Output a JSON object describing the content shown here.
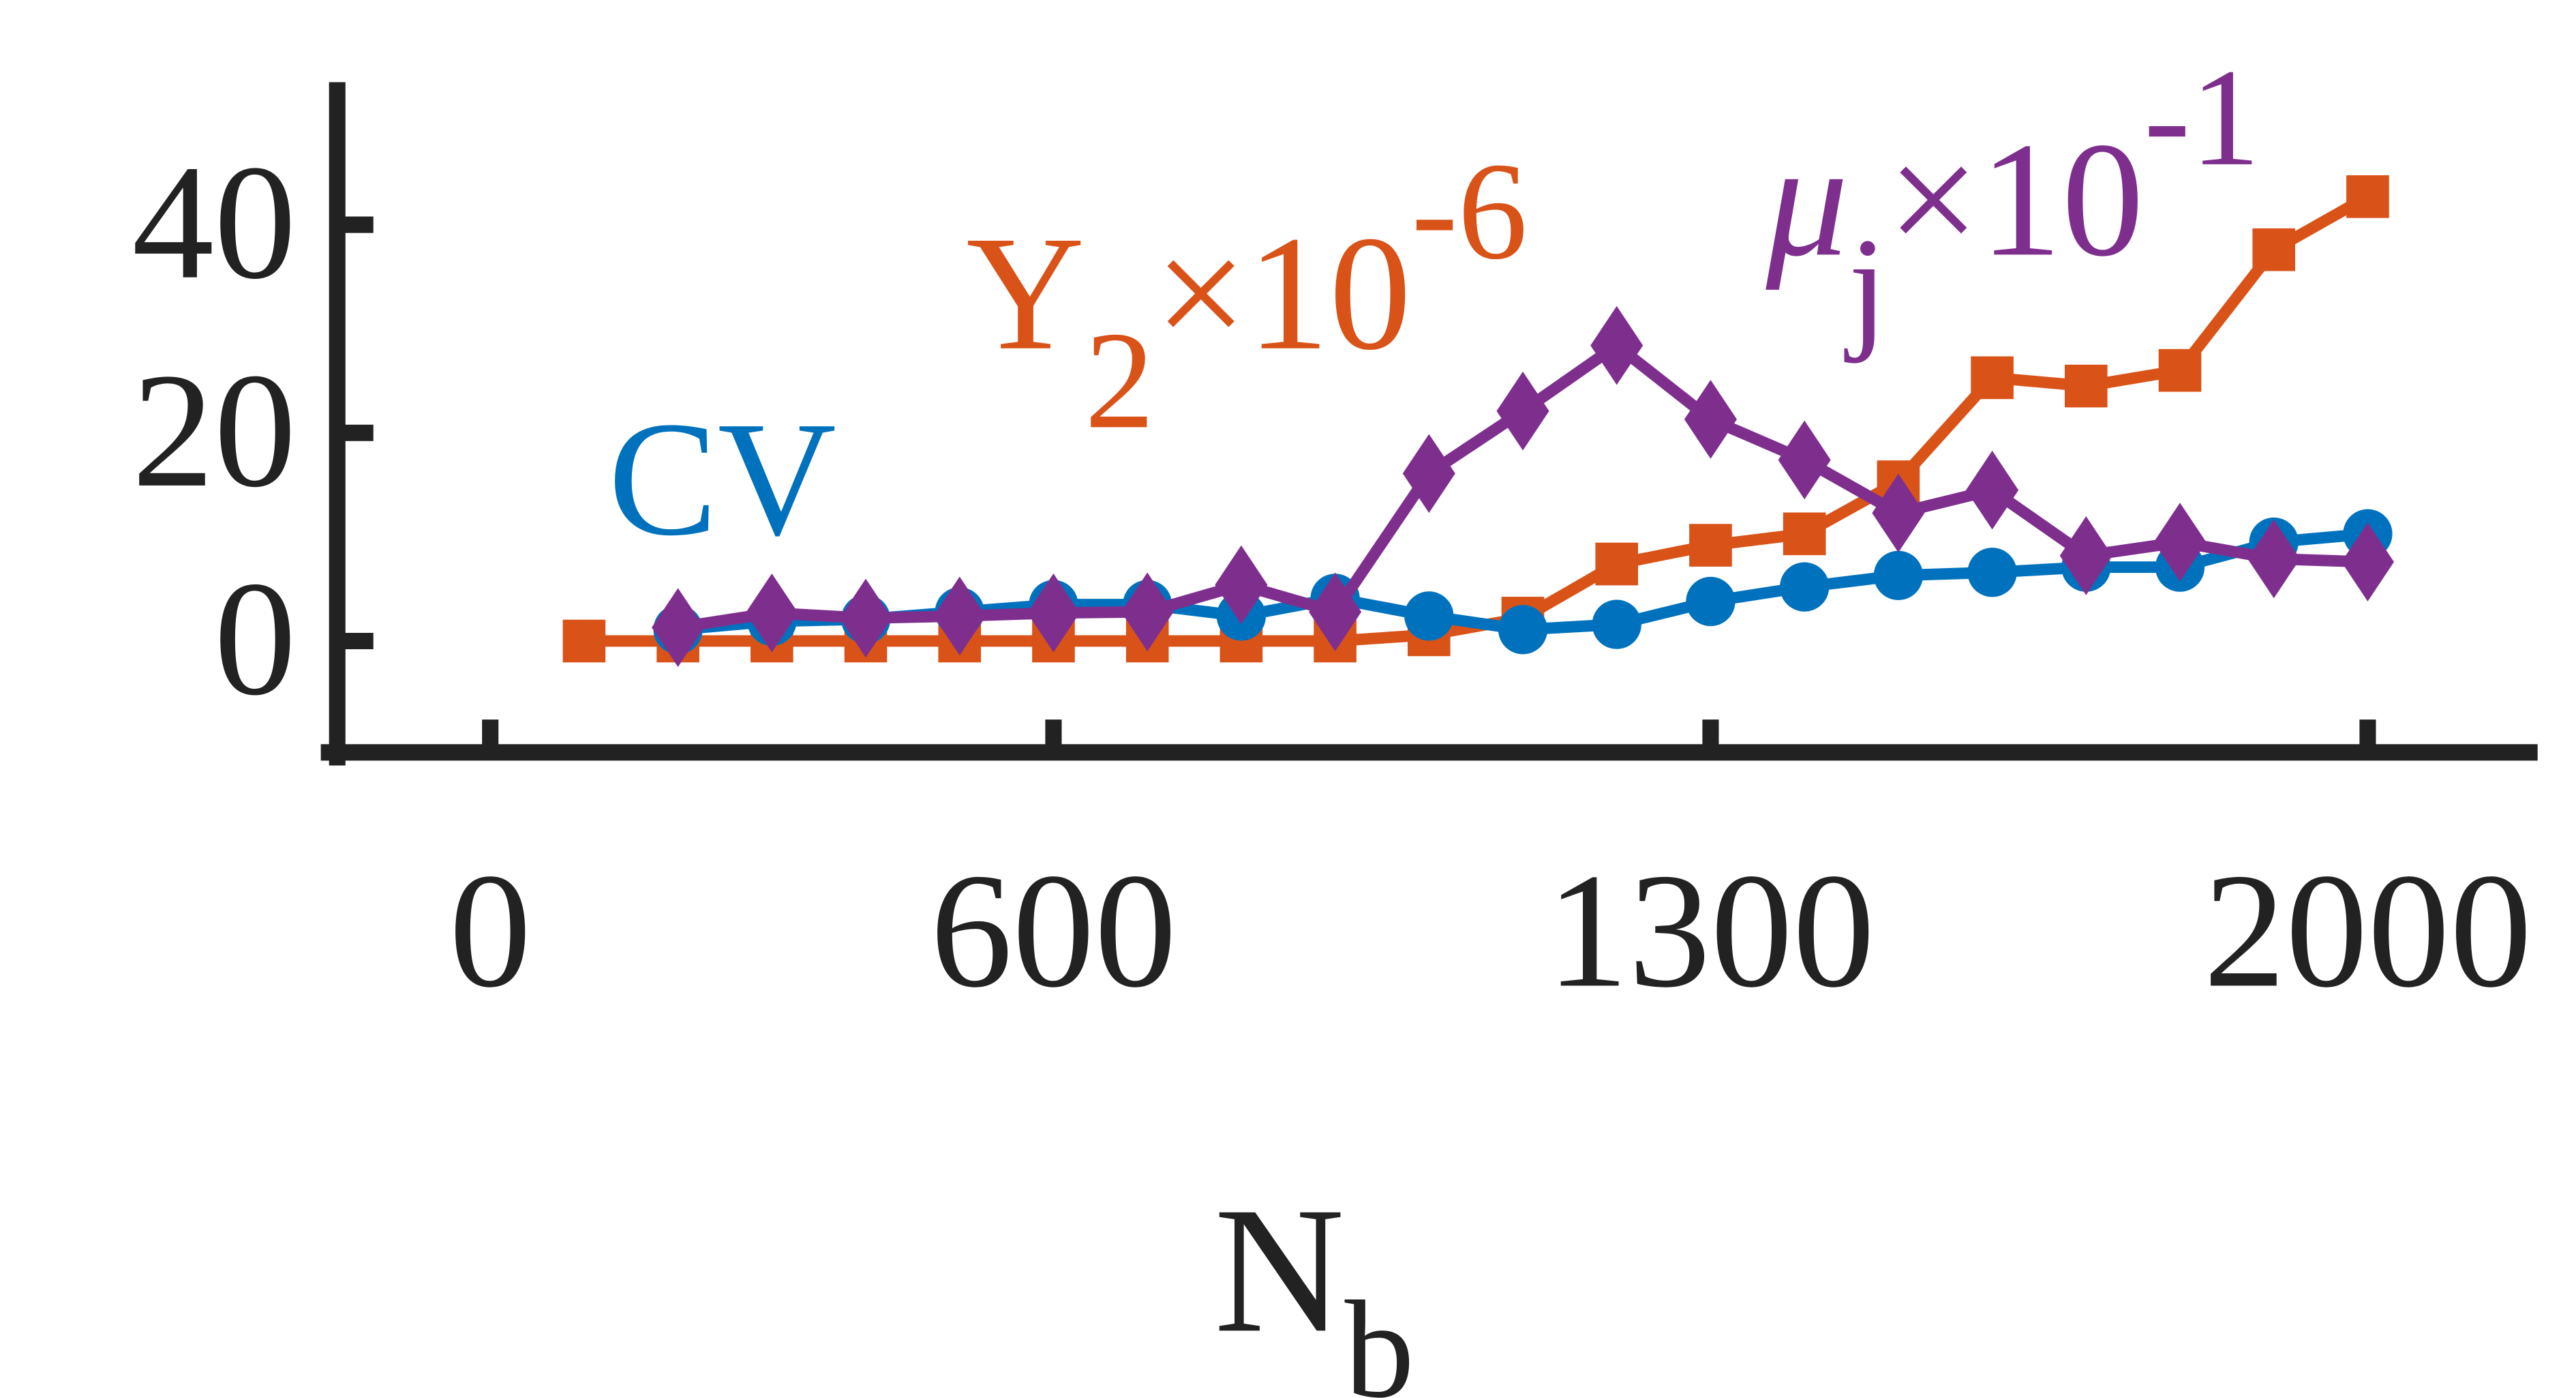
{
  "chart_data": {
    "type": "line",
    "x": [
      100,
      200,
      300,
      400,
      500,
      600,
      700,
      800,
      900,
      1000,
      1100,
      1200,
      1300,
      1400,
      1500,
      1600,
      1700,
      1800,
      1900,
      2000
    ],
    "xlim": [
      -163,
      2181
    ],
    "xticks": [
      0,
      600,
      1300,
      2000
    ],
    "ylim": [
      -10.7,
      53.7
    ],
    "yticks": [
      0,
      20,
      40
    ],
    "xlabel": "N",
    "xlabel_sub": "b",
    "series": [
      {
        "name": "Y",
        "name_sub": "2",
        "name_suffix": "×10",
        "name_sup": "-6",
        "color": "#D95319",
        "marker": "square",
        "values": [
          0,
          0,
          0,
          0,
          0,
          0,
          0,
          0,
          0,
          0.6,
          2.2,
          7.4,
          9.2,
          10.3,
          15.3,
          25.3,
          24.5,
          26,
          37.6,
          42.7
        ]
      },
      {
        "name": "CV",
        "color": "#0072BD",
        "marker": "circle",
        "values": [
          null,
          1.1,
          1.9,
          2.1,
          2.8,
          3.5,
          3.5,
          2.4,
          4.1,
          2.4,
          1.1,
          1.6,
          3.8,
          5.2,
          6.3,
          6.6,
          7.1,
          7.1,
          9.5,
          10.3
        ]
      },
      {
        "name": "μ",
        "name_sub": "j",
        "name_suffix": "×10",
        "name_sup": "-1",
        "color": "#7E2F8E",
        "marker": "diamond",
        "values": [
          null,
          1.3,
          2.7,
          2.2,
          2.4,
          2.7,
          2.8,
          5.4,
          2.8,
          16.1,
          22.1,
          28.4,
          21.3,
          17.4,
          12.3,
          14.5,
          8.2,
          9.5,
          7.9,
          7.6
        ]
      }
    ]
  }
}
